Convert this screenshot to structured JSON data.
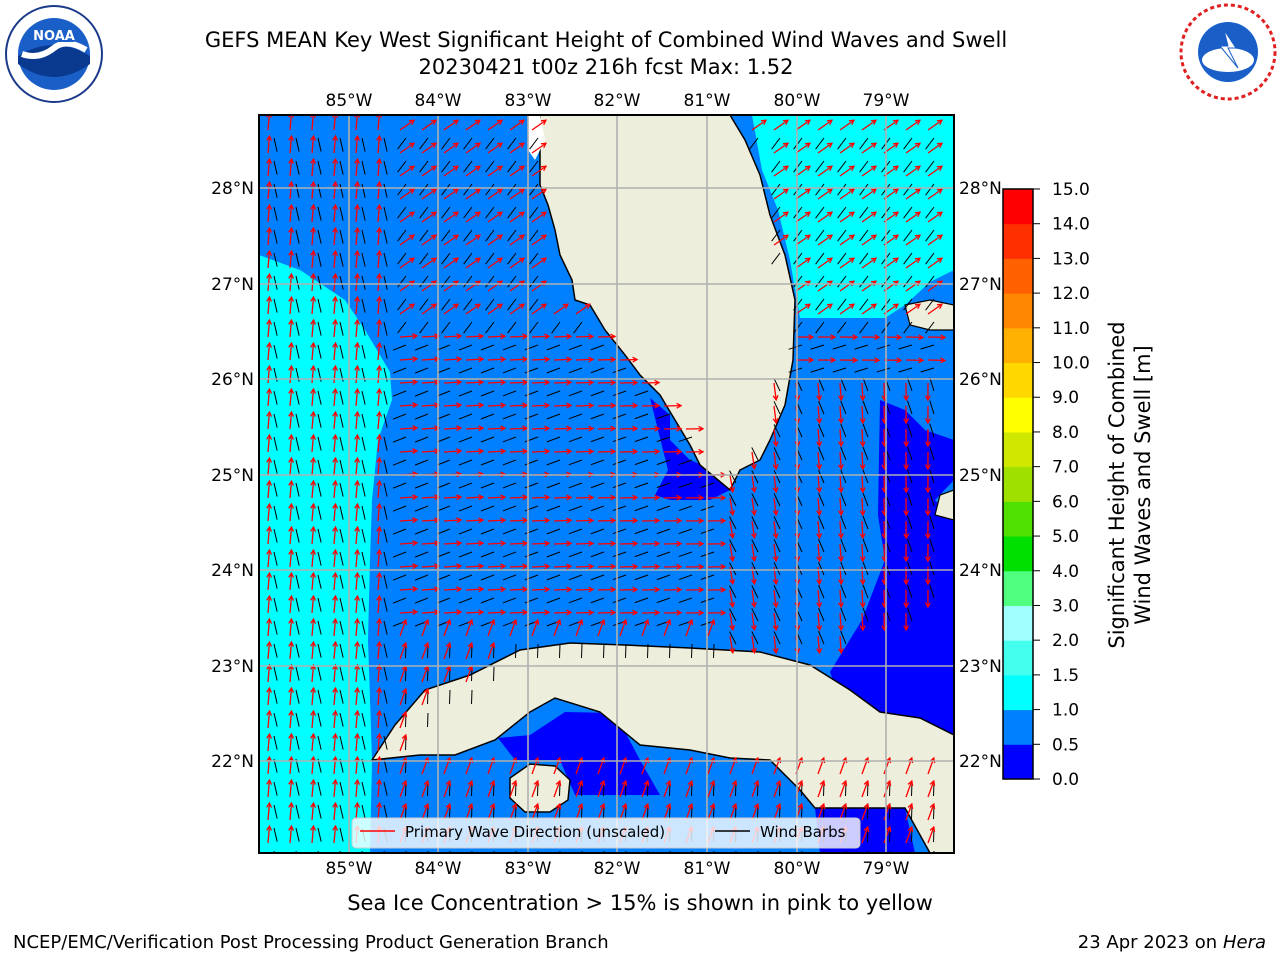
{
  "title_line1": "GEFS MEAN Key West Significant Height of Combined Wind Waves and Swell",
  "title_line2": "20230421 t00z 216h fcst   Max: 1.52",
  "lon_labels": [
    "85°W",
    "84°W",
    "83°W",
    "82°W",
    "81°W",
    "80°W",
    "79°W"
  ],
  "lat_labels": [
    "28°N",
    "27°N",
    "26°N",
    "25°N",
    "24°N",
    "23°N",
    "22°N"
  ],
  "legend": {
    "primary_wave": "Primary Wave Direction (unscaled)",
    "wind_barbs": "Wind Barbs"
  },
  "colorbar": {
    "label_line1": "Significant Height of Combined",
    "label_line2": "Wind Waves and Swell [m]",
    "ticks": [
      "0.0",
      "0.5",
      "1.0",
      "1.5",
      "2.0",
      "3.0",
      "4.0",
      "5.0",
      "6.0",
      "7.0",
      "8.0",
      "9.0",
      "10.0",
      "11.0",
      "12.0",
      "13.0",
      "14.0",
      "15.0"
    ],
    "colors": [
      "#0000ff",
      "#0080ff",
      "#00ffff",
      "#44ffee",
      "#a0ffff",
      "#50ff80",
      "#00e000",
      "#50e000",
      "#a0e000",
      "#d0e800",
      "#ffff00",
      "#ffd800",
      "#ffb000",
      "#ff8800",
      "#ff6000",
      "#ff3000",
      "#ff0000"
    ]
  },
  "ice_note": "Sea Ice Concentration > 15% is shown in pink to yellow",
  "footer_left": "NCEP/EMC/Verification Post Processing Product Generation Branch",
  "footer_date": "23 Apr 2023 on",
  "footer_host": "Hera",
  "colors": {
    "land": "#eeeedc",
    "band_0_05": "#0000ff",
    "band_05_1": "#0080ff",
    "band_1_15": "#00ffff",
    "wave_arrow": "#ff0000",
    "barb": "#000000",
    "grid": "#b0b0b0"
  }
}
